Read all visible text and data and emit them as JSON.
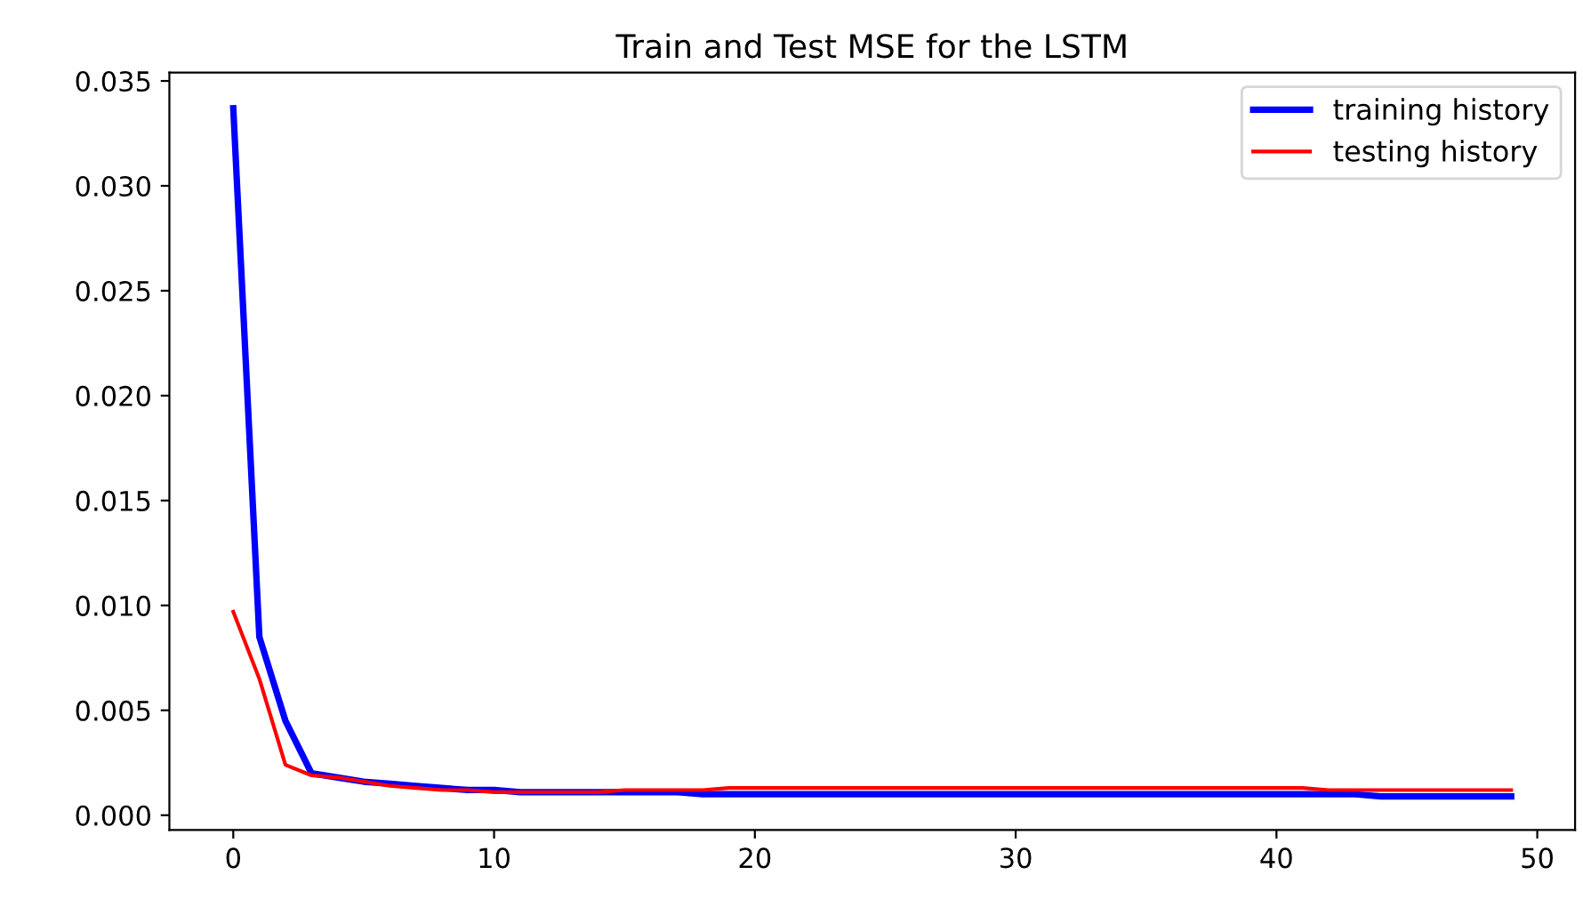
{
  "chart_data": {
    "type": "line",
    "title": "Train and Test MSE for the LSTM",
    "x": [
      0,
      1,
      2,
      3,
      4,
      5,
      6,
      7,
      8,
      9,
      10,
      11,
      12,
      13,
      14,
      15,
      16,
      17,
      18,
      19,
      20,
      21,
      22,
      23,
      24,
      25,
      26,
      27,
      28,
      29,
      30,
      31,
      32,
      33,
      34,
      35,
      36,
      37,
      38,
      39,
      40,
      41,
      42,
      43,
      44,
      45,
      46,
      47,
      48,
      49
    ],
    "series": [
      {
        "name": "training history",
        "color": "#0000ff",
        "values": [
          0.0337,
          0.0085,
          0.0045,
          0.002,
          0.0018,
          0.0016,
          0.0015,
          0.0014,
          0.0013,
          0.0012,
          0.0012,
          0.0011,
          0.0011,
          0.0011,
          0.0011,
          0.0011,
          0.0011,
          0.0011,
          0.001,
          0.001,
          0.001,
          0.001,
          0.001,
          0.001,
          0.001,
          0.001,
          0.001,
          0.001,
          0.001,
          0.001,
          0.001,
          0.001,
          0.001,
          0.001,
          0.001,
          0.001,
          0.001,
          0.001,
          0.001,
          0.001,
          0.001,
          0.001,
          0.001,
          0.001,
          0.0009,
          0.0009,
          0.0009,
          0.0009,
          0.0009,
          0.0009
        ]
      },
      {
        "name": "testing history",
        "color": "#ff0000",
        "values": [
          0.0097,
          0.0065,
          0.0024,
          0.0019,
          0.0018,
          0.0016,
          0.0014,
          0.0013,
          0.0012,
          0.0012,
          0.0011,
          0.0011,
          0.0011,
          0.0011,
          0.0011,
          0.0012,
          0.0012,
          0.0012,
          0.0012,
          0.0013,
          0.0013,
          0.0013,
          0.0013,
          0.0013,
          0.0013,
          0.0013,
          0.0013,
          0.0013,
          0.0013,
          0.0013,
          0.0013,
          0.0013,
          0.0013,
          0.0013,
          0.0013,
          0.0013,
          0.0013,
          0.0013,
          0.0013,
          0.0013,
          0.0013,
          0.0013,
          0.0012,
          0.0012,
          0.0012,
          0.0012,
          0.0012,
          0.0012,
          0.0012,
          0.0012
        ]
      }
    ],
    "xlim": [
      -2.45,
      51.45
    ],
    "ylim": [
      -0.0007,
      0.0354
    ],
    "xticks": [
      0,
      10,
      20,
      30,
      40,
      50
    ],
    "yticks": [
      {
        "value": 0,
        "label": "0.000"
      },
      {
        "value": 0.005,
        "label": "0.005"
      },
      {
        "value": 0.01,
        "label": "0.010"
      },
      {
        "value": 0.015,
        "label": "0.015"
      },
      {
        "value": 0.02,
        "label": "0.020"
      },
      {
        "value": 0.025,
        "label": "0.025"
      },
      {
        "value": 0.03,
        "label": "0.030"
      },
      {
        "value": 0.035,
        "label": "0.035"
      }
    ],
    "legend": "upper right",
    "grid": false,
    "marker": "none",
    "line_style": "solid"
  }
}
